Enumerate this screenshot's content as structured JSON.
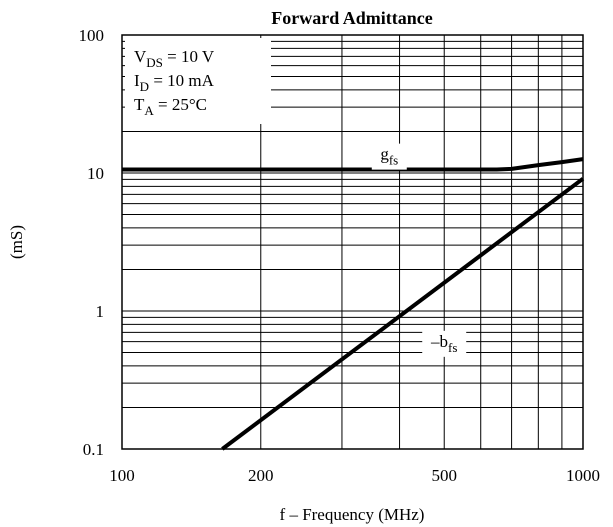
{
  "chart_data": {
    "type": "line",
    "title": "Forward Admittance",
    "xlabel": "f – Frequency (MHz)",
    "ylabel": "(mS)",
    "x_scale": "log",
    "y_scale": "log",
    "xlim": [
      100,
      1000
    ],
    "ylim": [
      0.1,
      100
    ],
    "x_ticks": [
      {
        "value": 100,
        "label": "100"
      },
      {
        "value": 200,
        "label": "200"
      },
      {
        "value": 500,
        "label": "500"
      },
      {
        "value": 1000,
        "label": "1000"
      }
    ],
    "y_ticks": [
      {
        "value": 100,
        "label": "100"
      },
      {
        "value": 10,
        "label": "10"
      },
      {
        "value": 1,
        "label": "1"
      },
      {
        "value": 0.1,
        "label": "0.1"
      }
    ],
    "grid": true,
    "conditions": [
      {
        "main": "V",
        "sub": "DS",
        "rest": " = 10 V"
      },
      {
        "main": "I",
        "sub": "D",
        "rest": " = 10 mA"
      },
      {
        "main": "T",
        "sub": "A",
        "rest": " = 25°C"
      }
    ],
    "series": [
      {
        "name": "g_fs",
        "label_main": "g",
        "label_sub": "fs",
        "label_at": {
          "x": 380,
          "y": 12.5
        },
        "x": [
          100,
          200,
          300,
          400,
          500,
          600,
          650,
          700,
          800,
          900,
          1000
        ],
        "y": [
          10.6,
          10.6,
          10.6,
          10.6,
          10.6,
          10.6,
          10.6,
          10.7,
          11.4,
          12.0,
          12.6
        ]
      },
      {
        "name": "-b_fs",
        "label_main": "–b",
        "label_sub": "fs",
        "label_at": {
          "x": 500,
          "y": 0.55
        },
        "x": [
          165,
          1000
        ],
        "y": [
          0.1,
          9.1
        ]
      }
    ]
  }
}
